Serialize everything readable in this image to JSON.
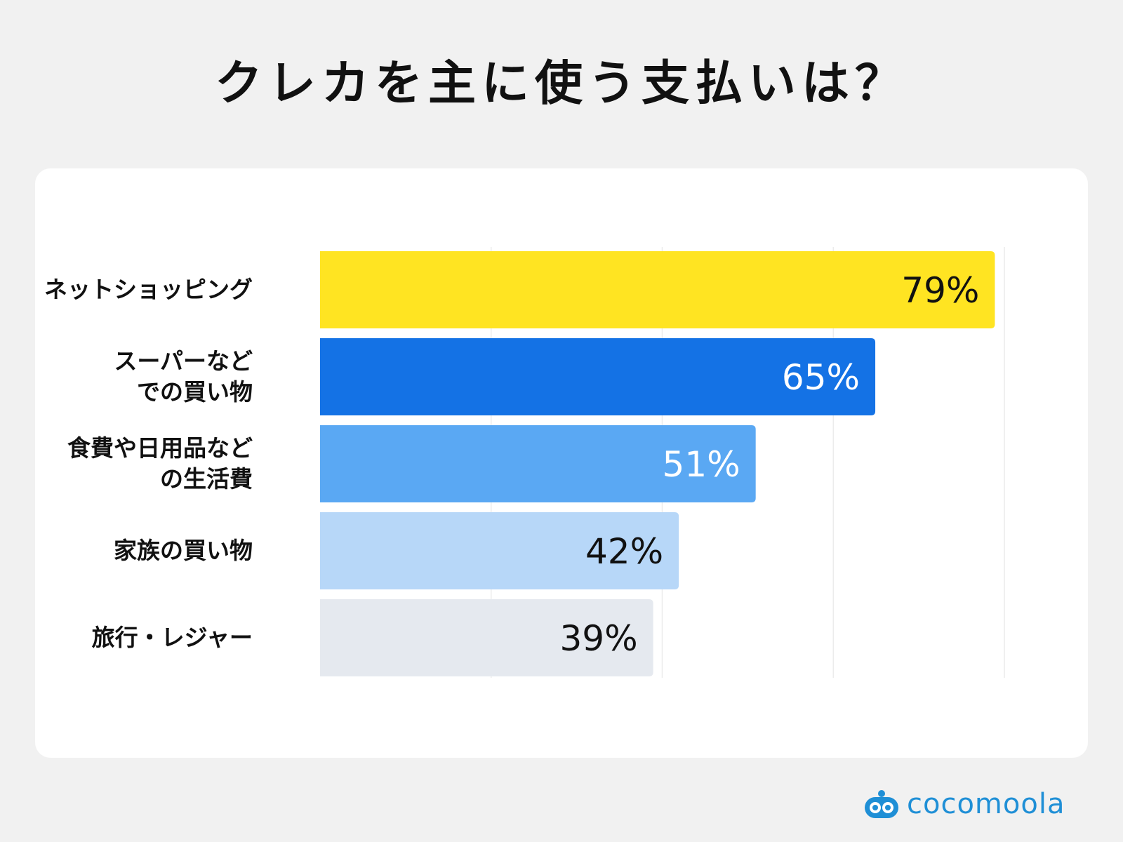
{
  "title": "クレカを主に使う支払いは？",
  "chart_data": {
    "type": "bar",
    "orientation": "horizontal",
    "title": "クレカを主に使う支払いは？",
    "categories": [
      "ネットショッピング",
      "スーパーなど\nでの買い物",
      "食費や日用品など\nの生活費",
      "家族の買い物",
      "旅行・レジャー"
    ],
    "values": [
      79,
      65,
      51,
      42,
      39
    ],
    "value_labels": [
      "79%",
      "65%",
      "51%",
      "42%",
      "39%"
    ],
    "unit": "%",
    "xlim": [
      0,
      80
    ],
    "grid": true,
    "bar_colors": [
      "#ffe422",
      "#1472e5",
      "#5aa8f3",
      "#b7d7f8",
      "#e5e9ef"
    ],
    "label_colors": [
      "#111111",
      "#ffffff",
      "#ffffff",
      "#111111",
      "#111111"
    ]
  },
  "brand": {
    "name": "cocomoola",
    "color": "#1f8fd6"
  }
}
